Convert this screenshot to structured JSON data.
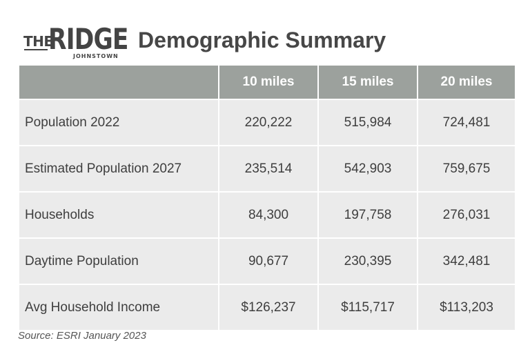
{
  "logo": {
    "the": "THE",
    "ridge": "RIDGE",
    "subtitle": "JOHNSTOWN"
  },
  "title": "Demographic Summary",
  "table": {
    "columns": [
      "",
      "10 miles",
      "15 miles",
      "20 miles"
    ],
    "rows": [
      {
        "label": "Population 2022",
        "values": [
          "220,222",
          "515,984",
          "724,481"
        ]
      },
      {
        "label": "Estimated Population 2027",
        "values": [
          "235,514",
          "542,903",
          "759,675"
        ]
      },
      {
        "label": "Households",
        "values": [
          "84,300",
          "197,758",
          "276,031"
        ]
      },
      {
        "label": "Daytime Population",
        "values": [
          "90,677",
          "230,395",
          "342,481"
        ]
      },
      {
        "label": "Avg Household Income",
        "values": [
          "$126,237",
          "$115,717",
          "$113,203"
        ]
      }
    ]
  },
  "source": "Source: ESRI January 2023",
  "colors": {
    "header_bg": "#9ca19d",
    "row_bg": "#ebebeb",
    "text": "#3e3e3e"
  }
}
